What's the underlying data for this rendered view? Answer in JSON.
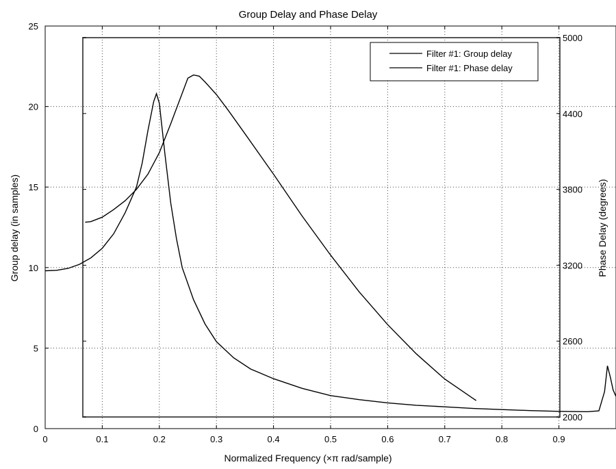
{
  "chart_data": {
    "type": "line",
    "title": "Group Delay and Phase Delay",
    "xlabel": "Normalized Frequency (×π rad/sample)",
    "ylabel_left": "Group delay (in samples)",
    "ylabel_right": "Phase Delay (degrees)",
    "xlim": [
      0,
      1
    ],
    "ylim_left": [
      0,
      25
    ],
    "ylim_right": [
      2000,
      5000
    ],
    "x_ticks": [
      "0",
      "0.1",
      "0.2",
      "0.3",
      "0.4",
      "0.5",
      "0.6",
      "0.7",
      "0.8",
      "0.9"
    ],
    "y_left_ticks": [
      "0",
      "5",
      "10",
      "15",
      "20",
      "25"
    ],
    "y_right_ticks": [
      "2000",
      "2600",
      "3200",
      "3800",
      "4400",
      "5000"
    ],
    "grid": true,
    "legend_position": "top-right",
    "series": [
      {
        "name": "Filter #1: Group delay",
        "axis": "left",
        "color": "#000000",
        "points": [
          [
            0.0,
            9.8
          ],
          [
            0.02,
            9.83
          ],
          [
            0.04,
            9.95
          ],
          [
            0.06,
            10.2
          ],
          [
            0.08,
            10.6
          ],
          [
            0.1,
            11.2
          ],
          [
            0.12,
            12.1
          ],
          [
            0.14,
            13.4
          ],
          [
            0.16,
            15.0
          ],
          [
            0.17,
            16.5
          ],
          [
            0.18,
            18.5
          ],
          [
            0.19,
            20.3
          ],
          [
            0.195,
            20.8
          ],
          [
            0.2,
            20.2
          ],
          [
            0.21,
            17.0
          ],
          [
            0.22,
            14.0
          ],
          [
            0.23,
            11.8
          ],
          [
            0.24,
            10.0
          ],
          [
            0.26,
            8.0
          ],
          [
            0.28,
            6.5
          ],
          [
            0.3,
            5.4
          ],
          [
            0.33,
            4.4
          ],
          [
            0.36,
            3.7
          ],
          [
            0.4,
            3.1
          ],
          [
            0.45,
            2.5
          ],
          [
            0.5,
            2.05
          ],
          [
            0.55,
            1.8
          ],
          [
            0.6,
            1.6
          ],
          [
            0.65,
            1.45
          ],
          [
            0.7,
            1.35
          ],
          [
            0.75,
            1.25
          ],
          [
            0.8,
            1.18
          ],
          [
            0.85,
            1.12
          ],
          [
            0.9,
            1.07
          ],
          [
            0.95,
            1.05
          ],
          [
            0.97,
            1.1
          ],
          [
            0.98,
            2.3
          ],
          [
            0.985,
            3.9
          ],
          [
            0.99,
            3.2
          ],
          [
            0.995,
            2.4
          ],
          [
            1.0,
            2.0
          ]
        ]
      },
      {
        "name": "Filter #1: Phase delay",
        "axis": "right",
        "color": "#000000",
        "points": [
          [
            0.07,
            3540
          ],
          [
            0.08,
            3545
          ],
          [
            0.1,
            3580
          ],
          [
            0.12,
            3640
          ],
          [
            0.14,
            3710
          ],
          [
            0.16,
            3800
          ],
          [
            0.18,
            3920
          ],
          [
            0.2,
            4090
          ],
          [
            0.22,
            4320
          ],
          [
            0.24,
            4560
          ],
          [
            0.25,
            4680
          ],
          [
            0.26,
            4705
          ],
          [
            0.27,
            4695
          ],
          [
            0.28,
            4650
          ],
          [
            0.3,
            4550
          ],
          [
            0.32,
            4430
          ],
          [
            0.35,
            4240
          ],
          [
            0.4,
            3920
          ],
          [
            0.45,
            3590
          ],
          [
            0.5,
            3280
          ],
          [
            0.55,
            2990
          ],
          [
            0.6,
            2730
          ],
          [
            0.65,
            2500
          ],
          [
            0.7,
            2300
          ],
          [
            0.75,
            2145
          ],
          [
            0.755,
            2130
          ]
        ]
      }
    ]
  }
}
